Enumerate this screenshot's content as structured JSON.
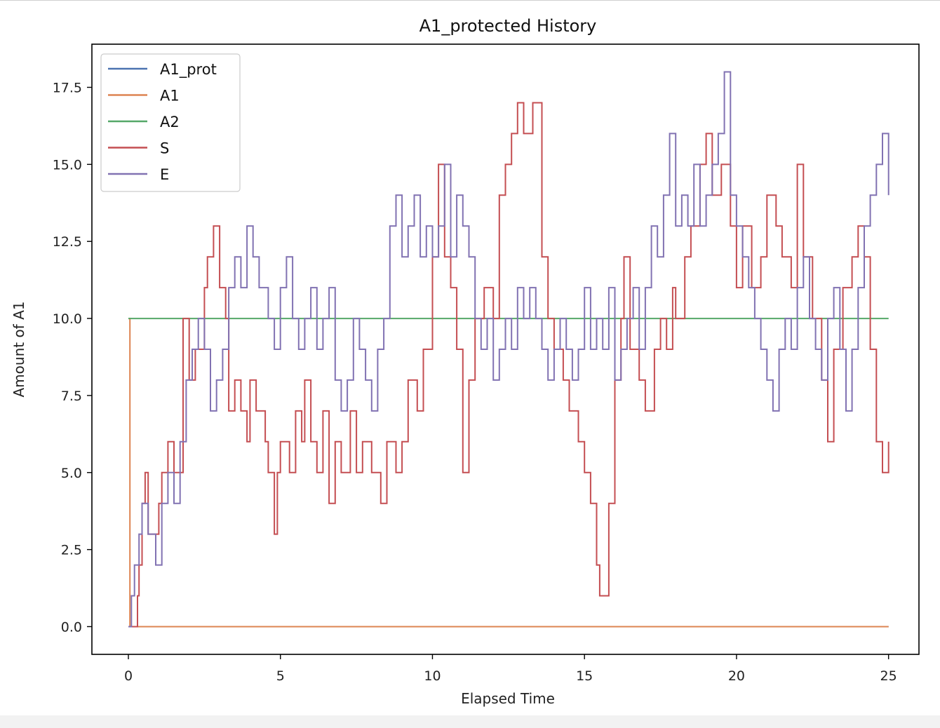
{
  "chart_data": {
    "type": "line",
    "title": "A1_protected History",
    "xlabel": "Elapsed Time",
    "ylabel": "Amount of A1",
    "xlim": [
      -1.2,
      26.0
    ],
    "ylim": [
      -0.9,
      18.9
    ],
    "xticks": [
      0,
      5,
      10,
      15,
      20,
      25
    ],
    "xtick_labels": [
      "0",
      "5",
      "10",
      "15",
      "20",
      "25"
    ],
    "yticks": [
      0.0,
      2.5,
      5.0,
      7.5,
      10.0,
      12.5,
      15.0,
      17.5
    ],
    "ytick_labels": [
      "0.0",
      "2.5",
      "5.0",
      "7.5",
      "10.0",
      "12.5",
      "15.0",
      "17.5"
    ],
    "grid": false,
    "legend_position": "top-left",
    "series": [
      {
        "name": "A1_prot",
        "color": "#4c72b0",
        "step": true,
        "points": [
          [
            0,
            0
          ],
          [
            25,
            0
          ]
        ]
      },
      {
        "name": "A1",
        "color": "#dd8452",
        "step": true,
        "points": [
          [
            0,
            10
          ],
          [
            0.05,
            0
          ],
          [
            25,
            0
          ]
        ]
      },
      {
        "name": "A2",
        "color": "#55a868",
        "step": true,
        "points": [
          [
            0,
            10
          ],
          [
            25,
            10
          ]
        ]
      },
      {
        "name": "S",
        "color": "#c44e52",
        "step": true,
        "points": [
          [
            0,
            0
          ],
          [
            0.3,
            1
          ],
          [
            0.35,
            2
          ],
          [
            0.45,
            4
          ],
          [
            0.55,
            5
          ],
          [
            0.65,
            3
          ],
          [
            1.0,
            4
          ],
          [
            1.1,
            5
          ],
          [
            1.3,
            6
          ],
          [
            1.5,
            5
          ],
          [
            1.8,
            10
          ],
          [
            2.0,
            8
          ],
          [
            2.2,
            9
          ],
          [
            2.5,
            11
          ],
          [
            2.6,
            12
          ],
          [
            2.8,
            13
          ],
          [
            3.0,
            11
          ],
          [
            3.2,
            10
          ],
          [
            3.3,
            7
          ],
          [
            3.5,
            8
          ],
          [
            3.7,
            7
          ],
          [
            3.9,
            6
          ],
          [
            4.0,
            8
          ],
          [
            4.2,
            7
          ],
          [
            4.5,
            6
          ],
          [
            4.6,
            5
          ],
          [
            4.8,
            3
          ],
          [
            4.9,
            5
          ],
          [
            5.0,
            6
          ],
          [
            5.3,
            5
          ],
          [
            5.5,
            7
          ],
          [
            5.7,
            6
          ],
          [
            5.8,
            8
          ],
          [
            6.0,
            6
          ],
          [
            6.2,
            5
          ],
          [
            6.4,
            7
          ],
          [
            6.6,
            4
          ],
          [
            6.8,
            6
          ],
          [
            7.0,
            5
          ],
          [
            7.3,
            7
          ],
          [
            7.5,
            5
          ],
          [
            7.7,
            6
          ],
          [
            8.0,
            5
          ],
          [
            8.3,
            4
          ],
          [
            8.5,
            6
          ],
          [
            8.8,
            5
          ],
          [
            9.0,
            6
          ],
          [
            9.2,
            8
          ],
          [
            9.5,
            7
          ],
          [
            9.7,
            9
          ],
          [
            10.0,
            12
          ],
          [
            10.2,
            15
          ],
          [
            10.4,
            12
          ],
          [
            10.6,
            11
          ],
          [
            10.8,
            9
          ],
          [
            11.0,
            5
          ],
          [
            11.2,
            8
          ],
          [
            11.4,
            10
          ],
          [
            11.7,
            11
          ],
          [
            12.0,
            10
          ],
          [
            12.2,
            14
          ],
          [
            12.4,
            15
          ],
          [
            12.6,
            16
          ],
          [
            12.8,
            17
          ],
          [
            13.0,
            16
          ],
          [
            13.3,
            17
          ],
          [
            13.6,
            12
          ],
          [
            13.8,
            10
          ],
          [
            14.0,
            9
          ],
          [
            14.3,
            8
          ],
          [
            14.5,
            7
          ],
          [
            14.8,
            6
          ],
          [
            15.0,
            5
          ],
          [
            15.2,
            4
          ],
          [
            15.4,
            2
          ],
          [
            15.5,
            1
          ],
          [
            15.8,
            4
          ],
          [
            16.0,
            8
          ],
          [
            16.2,
            10
          ],
          [
            16.3,
            12
          ],
          [
            16.5,
            9
          ],
          [
            16.8,
            8
          ],
          [
            17.0,
            7
          ],
          [
            17.3,
            9
          ],
          [
            17.5,
            10
          ],
          [
            17.7,
            9
          ],
          [
            17.9,
            11
          ],
          [
            18.0,
            10
          ],
          [
            18.3,
            12
          ],
          [
            18.5,
            13
          ],
          [
            18.8,
            15
          ],
          [
            19.0,
            16
          ],
          [
            19.2,
            14
          ],
          [
            19.5,
            15
          ],
          [
            19.8,
            13
          ],
          [
            20.0,
            11
          ],
          [
            20.2,
            13
          ],
          [
            20.5,
            11
          ],
          [
            20.8,
            12
          ],
          [
            21.0,
            14
          ],
          [
            21.3,
            13
          ],
          [
            21.5,
            12
          ],
          [
            21.8,
            11
          ],
          [
            22.0,
            15
          ],
          [
            22.2,
            12
          ],
          [
            22.5,
            10
          ],
          [
            22.8,
            8
          ],
          [
            23.0,
            6
          ],
          [
            23.2,
            9
          ],
          [
            23.5,
            11
          ],
          [
            23.8,
            12
          ],
          [
            24.0,
            13
          ],
          [
            24.2,
            12
          ],
          [
            24.4,
            9
          ],
          [
            24.6,
            6
          ],
          [
            24.8,
            5
          ],
          [
            25.0,
            6
          ]
        ]
      },
      {
        "name": "E",
        "color": "#8172b2",
        "step": true,
        "points": [
          [
            0,
            0
          ],
          [
            0.1,
            1
          ],
          [
            0.2,
            2
          ],
          [
            0.35,
            3
          ],
          [
            0.45,
            4
          ],
          [
            0.65,
            3
          ],
          [
            0.9,
            2
          ],
          [
            1.1,
            4
          ],
          [
            1.3,
            5
          ],
          [
            1.5,
            4
          ],
          [
            1.7,
            6
          ],
          [
            1.9,
            8
          ],
          [
            2.1,
            9
          ],
          [
            2.3,
            10
          ],
          [
            2.5,
            9
          ],
          [
            2.7,
            7
          ],
          [
            2.9,
            8
          ],
          [
            3.1,
            9
          ],
          [
            3.3,
            11
          ],
          [
            3.5,
            12
          ],
          [
            3.7,
            11
          ],
          [
            3.9,
            13
          ],
          [
            4.1,
            12
          ],
          [
            4.3,
            11
          ],
          [
            4.6,
            10
          ],
          [
            4.8,
            9
          ],
          [
            5.0,
            11
          ],
          [
            5.2,
            12
          ],
          [
            5.4,
            10
          ],
          [
            5.6,
            9
          ],
          [
            5.8,
            10
          ],
          [
            6.0,
            11
          ],
          [
            6.2,
            9
          ],
          [
            6.4,
            10
          ],
          [
            6.6,
            11
          ],
          [
            6.8,
            8
          ],
          [
            7.0,
            7
          ],
          [
            7.2,
            8
          ],
          [
            7.4,
            10
          ],
          [
            7.6,
            9
          ],
          [
            7.8,
            8
          ],
          [
            8.0,
            7
          ],
          [
            8.2,
            9
          ],
          [
            8.4,
            10
          ],
          [
            8.6,
            13
          ],
          [
            8.8,
            14
          ],
          [
            9.0,
            12
          ],
          [
            9.2,
            13
          ],
          [
            9.4,
            14
          ],
          [
            9.6,
            12
          ],
          [
            9.8,
            13
          ],
          [
            10.0,
            12
          ],
          [
            10.2,
            13
          ],
          [
            10.4,
            15
          ],
          [
            10.6,
            12
          ],
          [
            10.8,
            14
          ],
          [
            11.0,
            13
          ],
          [
            11.2,
            12
          ],
          [
            11.4,
            10
          ],
          [
            11.6,
            9
          ],
          [
            11.8,
            10
          ],
          [
            12.0,
            8
          ],
          [
            12.2,
            9
          ],
          [
            12.4,
            10
          ],
          [
            12.6,
            9
          ],
          [
            12.8,
            11
          ],
          [
            13.0,
            10
          ],
          [
            13.2,
            11
          ],
          [
            13.4,
            10
          ],
          [
            13.6,
            9
          ],
          [
            13.8,
            8
          ],
          [
            14.0,
            9
          ],
          [
            14.2,
            10
          ],
          [
            14.4,
            9
          ],
          [
            14.6,
            8
          ],
          [
            14.8,
            9
          ],
          [
            15.0,
            11
          ],
          [
            15.2,
            9
          ],
          [
            15.4,
            10
          ],
          [
            15.6,
            9
          ],
          [
            15.8,
            11
          ],
          [
            16.0,
            8
          ],
          [
            16.2,
            9
          ],
          [
            16.4,
            10
          ],
          [
            16.6,
            11
          ],
          [
            16.8,
            9
          ],
          [
            17.0,
            11
          ],
          [
            17.2,
            13
          ],
          [
            17.4,
            12
          ],
          [
            17.6,
            14
          ],
          [
            17.8,
            16
          ],
          [
            18.0,
            13
          ],
          [
            18.2,
            14
          ],
          [
            18.4,
            13
          ],
          [
            18.6,
            15
          ],
          [
            18.8,
            13
          ],
          [
            19.0,
            14
          ],
          [
            19.2,
            15
          ],
          [
            19.4,
            16
          ],
          [
            19.6,
            18
          ],
          [
            19.8,
            14
          ],
          [
            20.0,
            13
          ],
          [
            20.2,
            12
          ],
          [
            20.4,
            11
          ],
          [
            20.6,
            10
          ],
          [
            20.8,
            9
          ],
          [
            21.0,
            8
          ],
          [
            21.2,
            7
          ],
          [
            21.4,
            9
          ],
          [
            21.6,
            10
          ],
          [
            21.8,
            9
          ],
          [
            22.0,
            11
          ],
          [
            22.2,
            12
          ],
          [
            22.4,
            10
          ],
          [
            22.6,
            9
          ],
          [
            22.8,
            8
          ],
          [
            23.0,
            10
          ],
          [
            23.2,
            11
          ],
          [
            23.4,
            9
          ],
          [
            23.6,
            7
          ],
          [
            23.8,
            9
          ],
          [
            24.0,
            11
          ],
          [
            24.2,
            13
          ],
          [
            24.4,
            14
          ],
          [
            24.6,
            15
          ],
          [
            24.8,
            16
          ],
          [
            25.0,
            14
          ]
        ]
      }
    ]
  }
}
